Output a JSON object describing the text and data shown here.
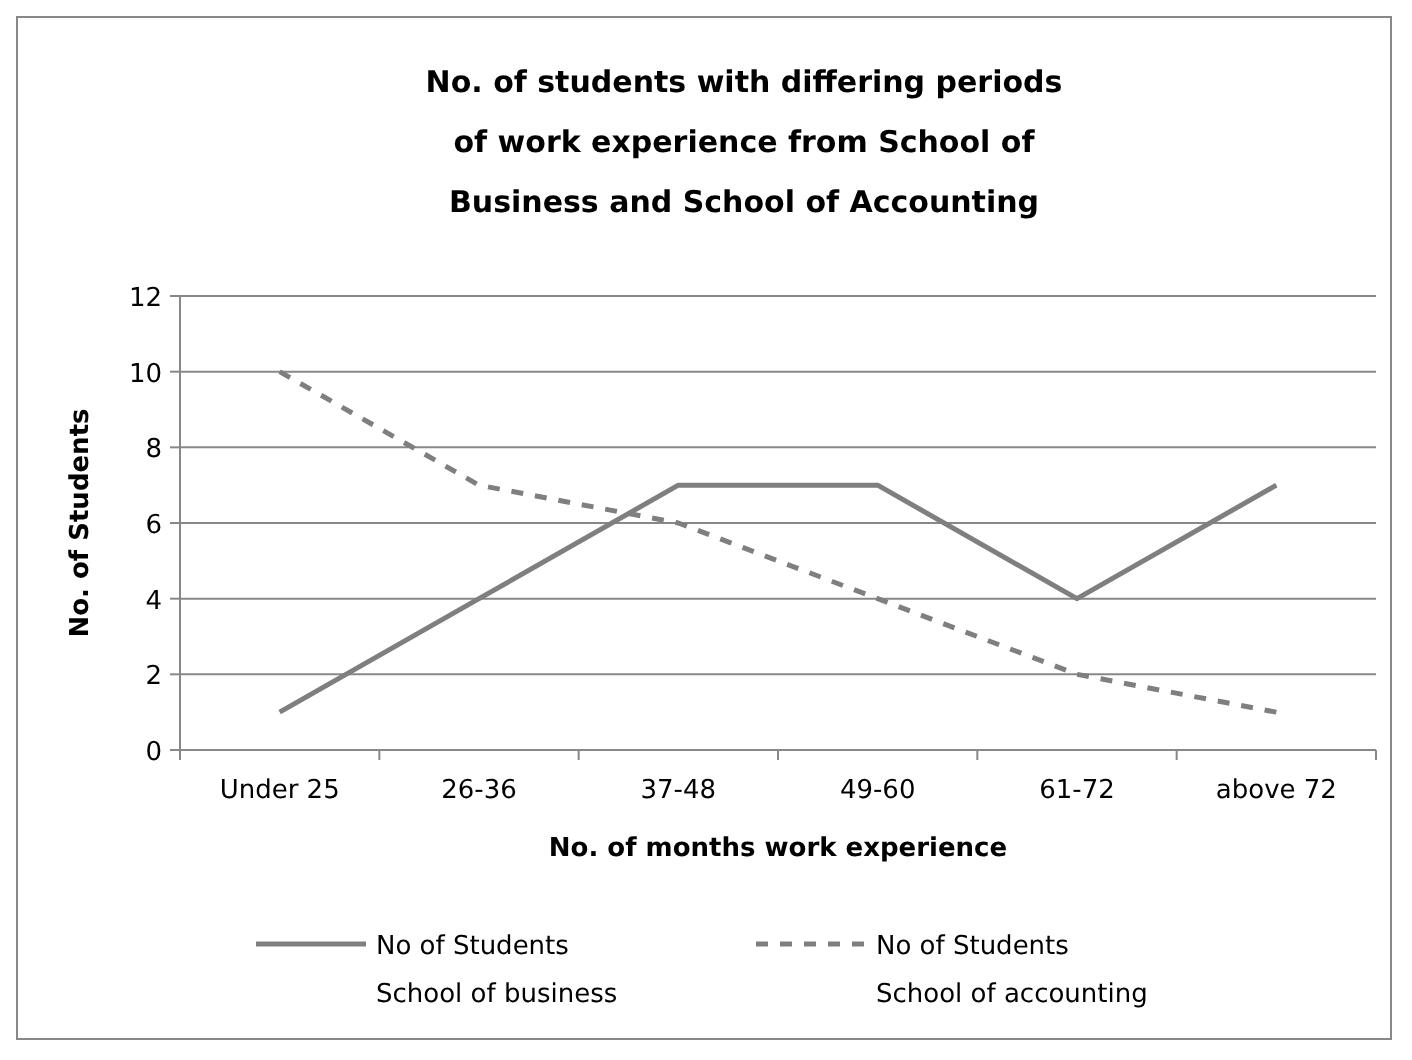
{
  "chart_data": {
    "type": "line",
    "title": "No. of students with differing periods of work experience from School of Business and School of Accounting",
    "xlabel": "No. of months work experience",
    "ylabel": "No. of Students",
    "categories": [
      "Under 25",
      "26-36",
      "37-48",
      "49-60",
      "61-72",
      "above 72"
    ],
    "series": [
      {
        "name": "No of Students School of business",
        "color": "#7f7f7f",
        "values": [
          1,
          4,
          7,
          7,
          4,
          7
        ],
        "line_style": "solid"
      },
      {
        "name": "No of Students School of accounting",
        "color": "#7f7f7f",
        "values": [
          10,
          7,
          6,
          4,
          2,
          1
        ],
        "line_style": "dashed"
      }
    ],
    "ylim": [
      0,
      12
    ],
    "yticks": [
      0,
      2,
      4,
      6,
      8,
      10,
      12
    ],
    "grid": "y",
    "legend": "bottom",
    "marker": "none"
  }
}
